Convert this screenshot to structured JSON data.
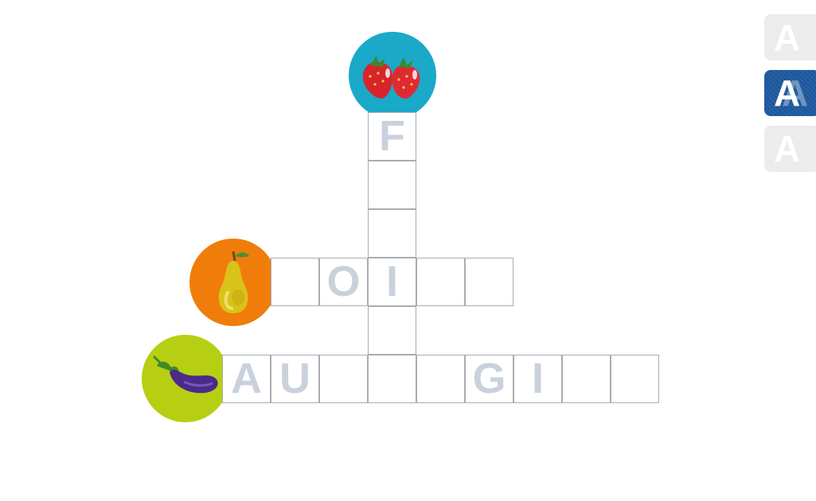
{
  "clues": {
    "strawberry": {
      "icon": "strawberry-icon",
      "color": "#1aa9c8"
    },
    "pear": {
      "icon": "pear-icon",
      "color": "#f07d0a"
    },
    "eggplant": {
      "icon": "eggplant-icon",
      "color": "#b7cf12"
    }
  },
  "words": {
    "vertical": [
      "F",
      "",
      "",
      "I",
      "",
      ""
    ],
    "middle": [
      "",
      "O",
      "I",
      "",
      ""
    ],
    "bottom": [
      "A",
      "U",
      "",
      "",
      "",
      "G",
      "I",
      "",
      ""
    ]
  },
  "font_buttons": [
    {
      "label": "A",
      "state": "light"
    },
    {
      "label": "A",
      "state": "active"
    },
    {
      "label": "A",
      "state": "light"
    }
  ]
}
